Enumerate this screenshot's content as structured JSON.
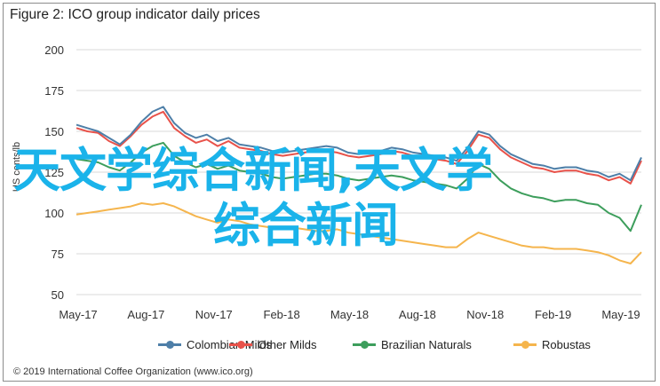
{
  "chart_data": {
    "type": "line",
    "title": "Figure 2: ICO group indicator daily prices",
    "ylabel": "US cents/lb",
    "xlabel": "",
    "ylim": [
      50,
      200
    ],
    "yticks": [
      50,
      75,
      100,
      125,
      150,
      175,
      200
    ],
    "xticks": [
      "May-17",
      "Aug-17",
      "Nov-17",
      "Feb-18",
      "May-18",
      "Aug-18",
      "Nov-18",
      "Feb-19",
      "May-19"
    ],
    "grid": "horizontal",
    "legend_position": "bottom",
    "series": [
      {
        "name": "Colombian Milds",
        "color": "#4e7fa8",
        "values": [
          154,
          152,
          150,
          146,
          142,
          148,
          156,
          162,
          165,
          155,
          149,
          146,
          148,
          144,
          146,
          142,
          141,
          140,
          138,
          137,
          138,
          139,
          140,
          141,
          140,
          137,
          136,
          137,
          138,
          140,
          139,
          137,
          136,
          135,
          134,
          132,
          140,
          150,
          148,
          141,
          136,
          133,
          130,
          129,
          127,
          128,
          128,
          126,
          125,
          122,
          124,
          120,
          134
        ]
      },
      {
        "name": "Other Milds",
        "color": "#e8524a",
        "values": [
          152,
          150,
          149,
          144,
          141,
          147,
          154,
          159,
          162,
          152,
          147,
          143,
          145,
          141,
          144,
          140,
          139,
          138,
          136,
          135,
          136,
          137,
          138,
          138,
          137,
          135,
          134,
          135,
          136,
          138,
          137,
          135,
          134,
          133,
          132,
          130,
          138,
          148,
          146,
          139,
          134,
          131,
          128,
          127,
          125,
          126,
          126,
          124,
          123,
          120,
          122,
          118,
          132
        ]
      },
      {
        "name": "Brazilian Naturals",
        "color": "#3d9e5c",
        "values": [
          133,
          132,
          131,
          128,
          126,
          131,
          137,
          141,
          143,
          135,
          131,
          128,
          130,
          127,
          129,
          126,
          125,
          124,
          122,
          121,
          122,
          123,
          124,
          124,
          123,
          121,
          120,
          121,
          122,
          123,
          122,
          120,
          119,
          118,
          117,
          115,
          121,
          130,
          127,
          120,
          115,
          112,
          110,
          109,
          107,
          108,
          108,
          106,
          105,
          100,
          97,
          89,
          105
        ]
      },
      {
        "name": "Robustas",
        "color": "#f5b54d",
        "values": [
          99,
          100,
          101,
          102,
          103,
          104,
          106,
          105,
          106,
          104,
          101,
          98,
          96,
          94,
          96,
          95,
          93,
          92,
          91,
          90,
          91,
          90,
          89,
          89,
          90,
          88,
          87,
          86,
          85,
          84,
          83,
          82,
          81,
          80,
          79,
          79,
          84,
          88,
          86,
          84,
          82,
          80,
          79,
          79,
          78,
          78,
          78,
          77,
          76,
          74,
          71,
          69,
          76
        ]
      }
    ]
  },
  "source": "© 2019 International Coffee Organization (www.ico.org)",
  "overlay": {
    "line1": "天文学综合新闻,天文学",
    "line2": "综合新闻"
  }
}
